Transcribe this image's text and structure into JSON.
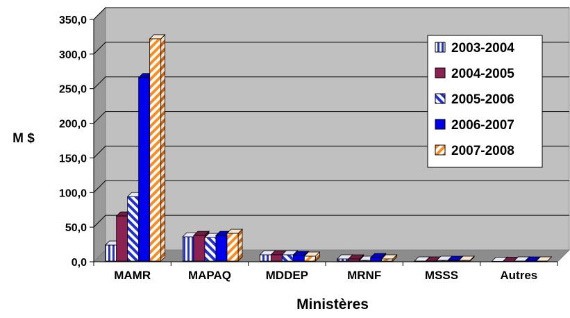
{
  "chart_data": {
    "type": "bar",
    "title": "",
    "xlabel": "Ministères",
    "ylabel": "M $",
    "ylim": [
      0,
      350
    ],
    "yticks": [
      "0,0",
      "50,0",
      "100,0",
      "150,0",
      "200,0",
      "250,0",
      "300,0",
      "350,0"
    ],
    "categories": [
      "MAMR",
      "MAPAQ",
      "MDDEP",
      "MRNF",
      "MSSS",
      "Autres"
    ],
    "series": [
      {
        "name": "2003-2004",
        "color": "#2233cc",
        "pattern": "vertical-stripes",
        "values": [
          24,
          36,
          10,
          4,
          1,
          0.5
        ]
      },
      {
        "name": "2004-2005",
        "color": "#8b2252",
        "pattern": "solid",
        "values": [
          66,
          38,
          10,
          4,
          1,
          0.5
        ]
      },
      {
        "name": "2005-2006",
        "color": "#1f2fd6",
        "pattern": "diagonal-stripes",
        "values": [
          94,
          35,
          10,
          2,
          2,
          1
        ]
      },
      {
        "name": "2006-2007",
        "color": "#0000ee",
        "pattern": "solid",
        "values": [
          266,
          38,
          9,
          6,
          2,
          1
        ]
      },
      {
        "name": "2007-2008",
        "color": "#ff8c1a",
        "pattern": "diagonal-stripes",
        "values": [
          322,
          41,
          8,
          4,
          2,
          1
        ]
      }
    ],
    "grid": true,
    "legend_position": "top-right"
  }
}
